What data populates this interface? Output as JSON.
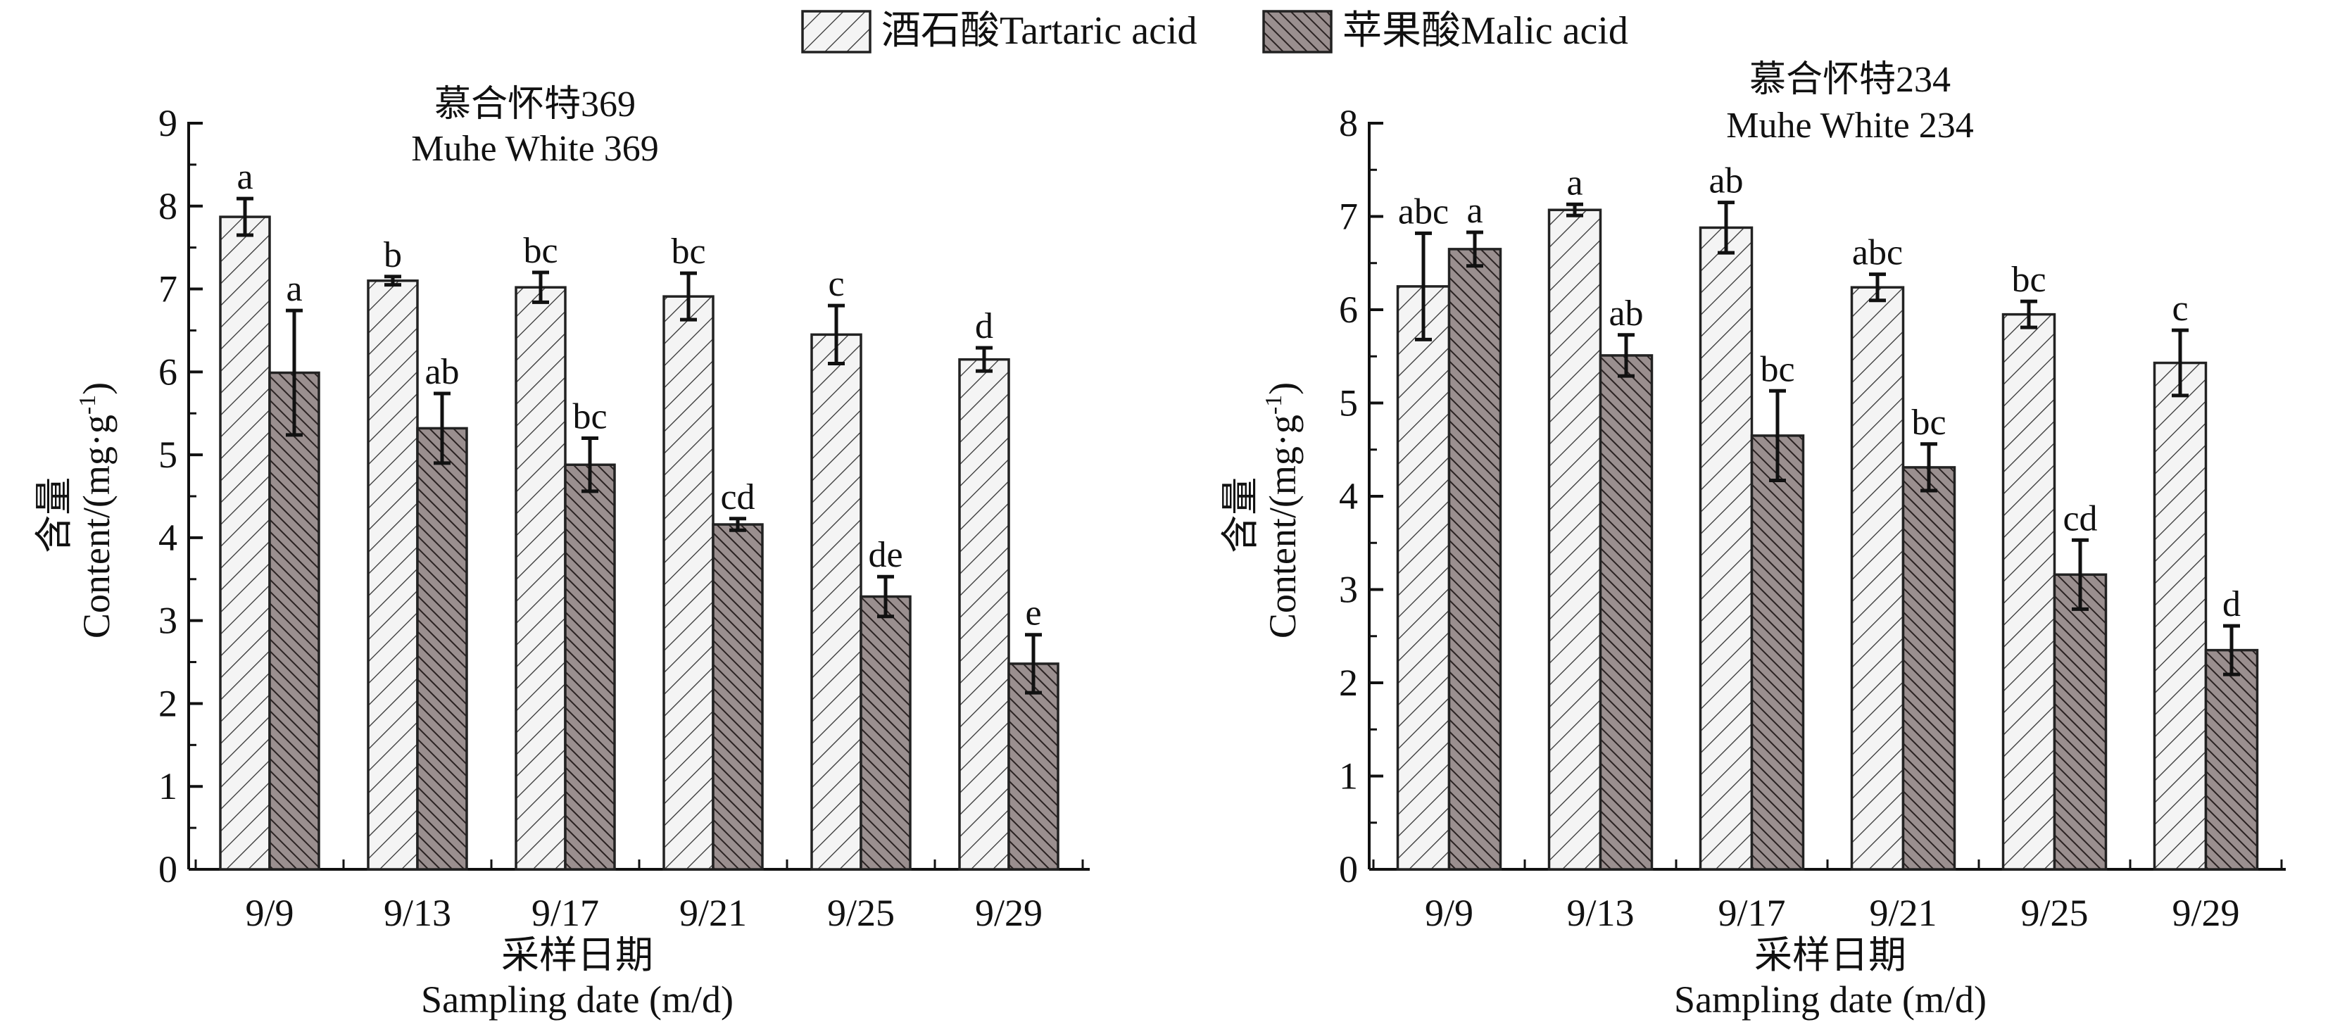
{
  "legend": {
    "items": [
      {
        "label": "酒石酸Tartaric acid",
        "fill": "#f4f4f4",
        "hatch": "forward"
      },
      {
        "label": "苹果酸Malic acid",
        "fill": "#8a7f7f",
        "hatch": "back"
      }
    ]
  },
  "chart_data": [
    {
      "type": "bar",
      "title": "慕合怀特369",
      "subtitle": "Muhe White 369",
      "xlabel": "采样日期",
      "xlabel_en": "Sampling date (m/d)",
      "ylabel": "含量",
      "ylabel_en": "Content/(mg·g",
      "ylabel_sup": "-1",
      "ylabel_end": ")",
      "categories": [
        "9/9",
        "9/13",
        "9/17",
        "9/21",
        "9/25",
        "9/29"
      ],
      "ylim": [
        0,
        9
      ],
      "yticks": [
        "0",
        "1",
        "2",
        "3",
        "4",
        "5",
        "6",
        "7",
        "8",
        "9"
      ],
      "series": [
        {
          "name": "酒石酸Tartaric acid",
          "values": [
            7.87,
            7.1,
            7.02,
            6.91,
            6.45,
            6.15
          ],
          "errors": [
            0.22,
            0.05,
            0.18,
            0.28,
            0.35,
            0.14
          ],
          "letters": [
            "a",
            "b",
            "bc",
            "bc",
            "c",
            "d"
          ]
        },
        {
          "name": "苹果酸Malic acid",
          "values": [
            5.99,
            5.32,
            4.88,
            4.16,
            3.29,
            2.48
          ],
          "errors": [
            0.75,
            0.42,
            0.32,
            0.07,
            0.24,
            0.35
          ],
          "letters": [
            "a",
            "ab",
            "bc",
            "cd",
            "de",
            "e"
          ]
        }
      ]
    },
    {
      "type": "bar",
      "title": "慕合怀特234",
      "subtitle": "Muhe White 234",
      "xlabel": "采样日期",
      "xlabel_en": "Sampling date (m/d)",
      "ylabel": "含量",
      "ylabel_en": "Content/(mg·g",
      "ylabel_sup": "-1",
      "ylabel_end": ")",
      "categories": [
        "9/9",
        "9/13",
        "9/17",
        "9/21",
        "9/25",
        "9/29"
      ],
      "ylim": [
        0,
        8
      ],
      "yticks": [
        "0",
        "1",
        "2",
        "3",
        "4",
        "5",
        "6",
        "7",
        "8"
      ],
      "series": [
        {
          "name": "酒石酸Tartaric acid",
          "values": [
            6.25,
            7.07,
            6.88,
            6.24,
            5.95,
            5.43
          ],
          "errors": [
            0.57,
            0.06,
            0.27,
            0.14,
            0.14,
            0.35
          ],
          "letters": [
            "abc",
            "a",
            "ab",
            "abc",
            "bc",
            "c"
          ]
        },
        {
          "name": "苹果酸Malic acid",
          "values": [
            6.65,
            5.51,
            4.65,
            4.31,
            3.16,
            2.35
          ],
          "errors": [
            0.18,
            0.22,
            0.48,
            0.25,
            0.37,
            0.26
          ],
          "letters": [
            "a",
            "ab",
            "bc",
            "bc",
            "cd",
            "d"
          ]
        }
      ]
    }
  ]
}
